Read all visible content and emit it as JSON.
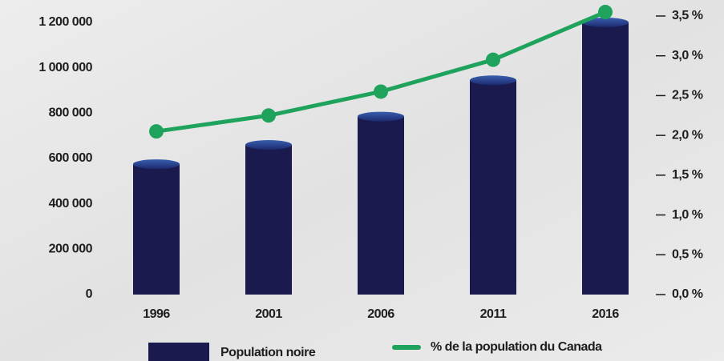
{
  "chart_data": {
    "type": "bar",
    "categories": [
      "1996",
      "2001",
      "2006",
      "2011",
      "2016"
    ],
    "series": [
      {
        "name": "Population noire",
        "type": "bar",
        "color": "#1b1a4f",
        "values": [
          575000,
          660000,
          785000,
          945000,
          1200000
        ]
      },
      {
        "name": "% de la population du Canada",
        "type": "line",
        "axis": "y2",
        "color": "#1fa35c",
        "values": [
          2.05,
          2.25,
          2.55,
          2.95,
          3.55
        ]
      }
    ],
    "ylim": [
      0,
      1200000
    ],
    "yticks": [
      0,
      {
        "value": 200000,
        "label": "200 000"
      },
      {
        "value": 400000,
        "label": "400 000"
      },
      {
        "value": 600000,
        "label": "600 000"
      },
      {
        "value": 800000,
        "label": "800 000"
      },
      {
        "value": 1000000,
        "label": "1 000 000"
      },
      {
        "value": 1200000,
        "label": "1 200 000"
      }
    ],
    "y2lim": [
      0,
      3.5
    ],
    "y2ticks": [
      {
        "value": 0,
        "label": "0,0 %"
      },
      {
        "value": 0.5,
        "label": "0,5 %"
      },
      {
        "value": 1,
        "label": "1,0 %"
      },
      {
        "value": 1.5,
        "label": "1,5 %"
      },
      {
        "value": 2,
        "label": "2,0 %"
      },
      {
        "value": 2.5,
        "label": "2,5 %"
      },
      {
        "value": 3,
        "label": "3,0 %"
      },
      {
        "value": 3.5,
        "label": "3,5 %"
      }
    ],
    "grid": false,
    "legend": "bottom"
  }
}
